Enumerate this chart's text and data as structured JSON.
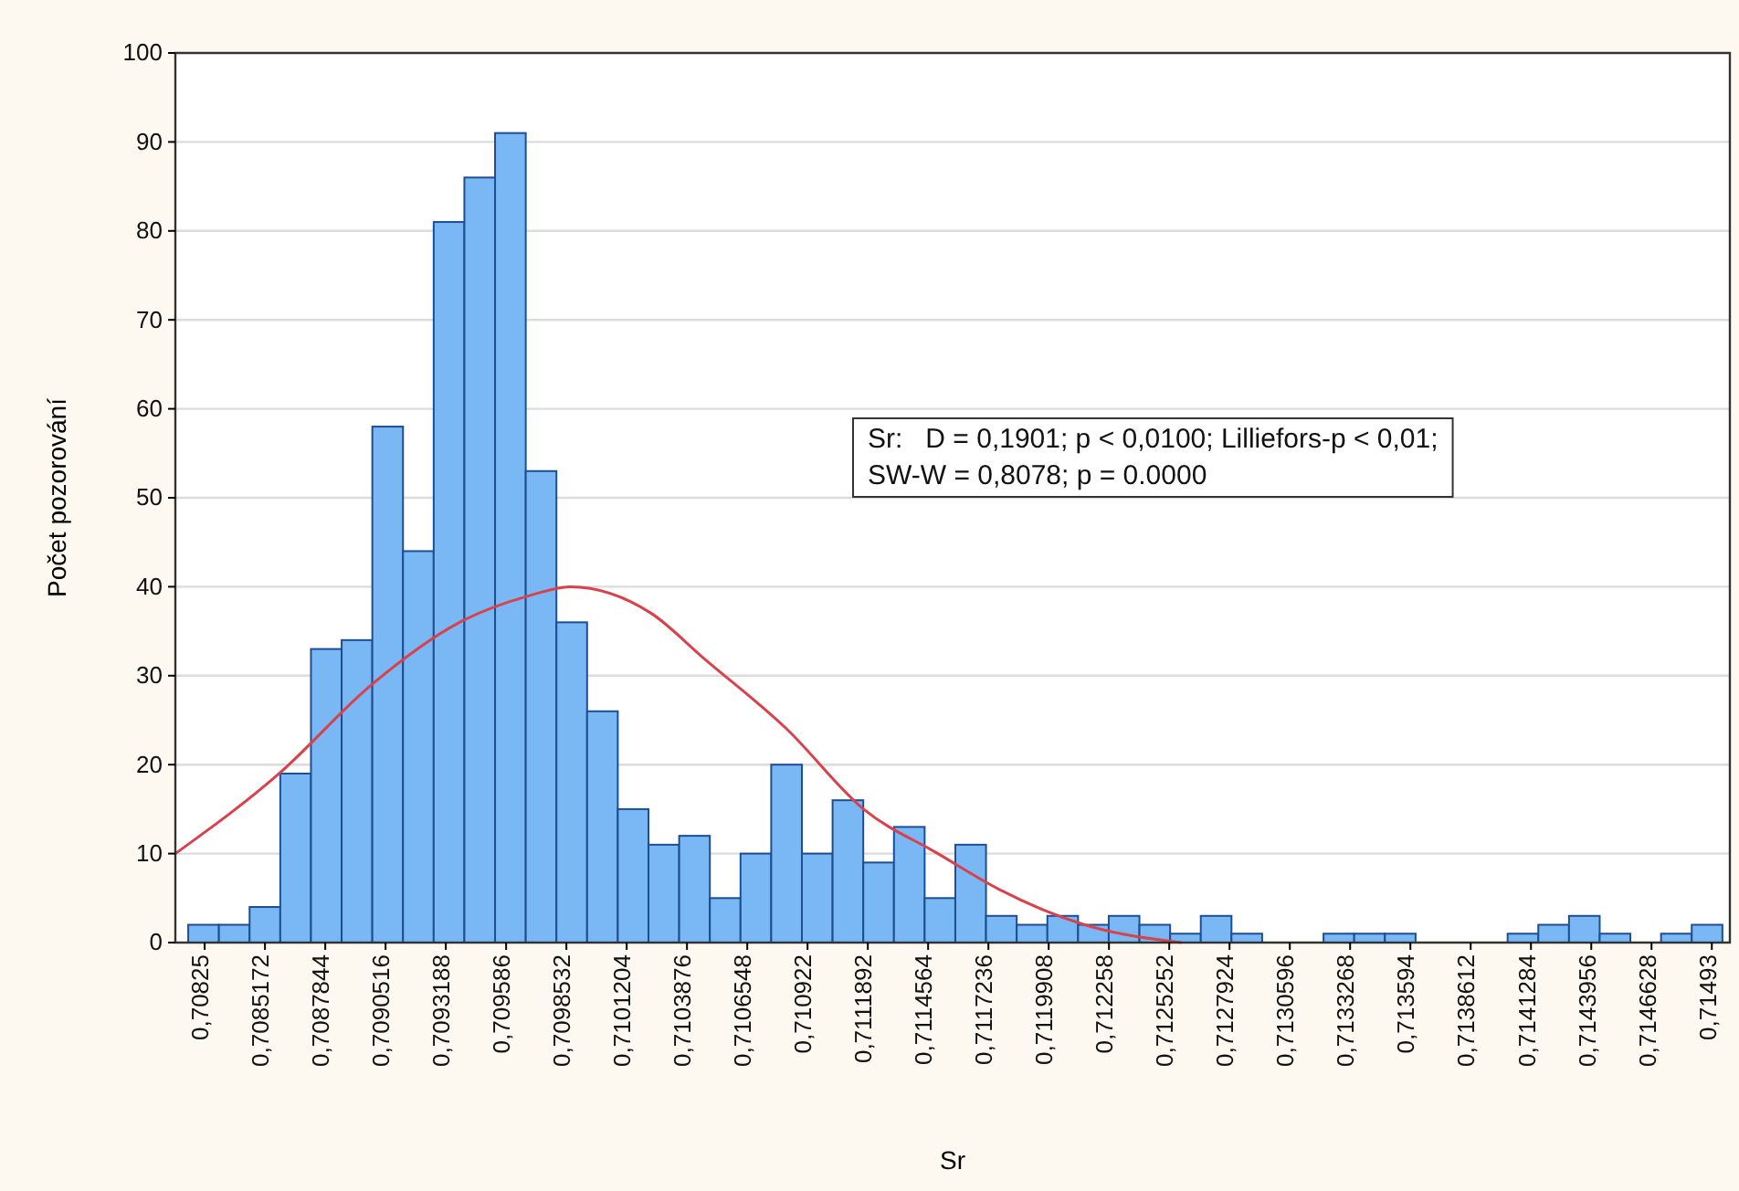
{
  "chart_data": {
    "type": "histogram",
    "xlabel": "Sr",
    "ylabel": "Počet pozorování",
    "bins": [
      0.708177,
      0.708313,
      0.708449,
      0.708585,
      0.708721,
      0.708857,
      0.708993,
      0.709129,
      0.709265,
      0.709401,
      0.709537,
      0.709673,
      0.709809,
      0.709945,
      0.710081,
      0.710217,
      0.710353,
      0.710489,
      0.710625,
      0.710761,
      0.710897,
      0.711033,
      0.711169,
      0.711305,
      0.711441,
      0.711577,
      0.711713,
      0.711849,
      0.711985,
      0.712121,
      0.712257,
      0.712393,
      0.712529,
      0.712665,
      0.712801,
      0.712937,
      0.713073,
      0.713209,
      0.713345,
      0.713481,
      0.713617,
      0.713753,
      0.713889,
      0.714025,
      0.714161,
      0.714297,
      0.714433,
      0.714569,
      0.714705,
      0.714841,
      0.714977
    ],
    "values": [
      2,
      2,
      4,
      19,
      33,
      34,
      58,
      44,
      81,
      86,
      91,
      53,
      36,
      26,
      15,
      11,
      12,
      5,
      10,
      20,
      10,
      16,
      9,
      13,
      5,
      11,
      3,
      2,
      3,
      2,
      3,
      2,
      1,
      3,
      1,
      0,
      0,
      1,
      1,
      1,
      0,
      0,
      0,
      1,
      2,
      3,
      1,
      0,
      1,
      2
    ],
    "color": "#7ab8f5",
    "series": [
      {
        "type": "line",
        "color": "#d8424c",
        "x": [
          0.70812,
          0.70858,
          0.70899,
          0.70938,
          0.70969,
          0.70987,
          0.71023,
          0.71046,
          0.71083,
          0.71117,
          0.7115,
          0.71177,
          0.71215,
          0.71258
        ],
        "values": [
          10,
          19,
          29,
          36,
          39,
          40,
          37,
          32,
          24,
          15,
          10,
          6,
          2,
          0
        ]
      }
    ],
    "xlim": [
      0.70812,
      0.71501
    ],
    "xticks": [
      {
        "value": 0.70825,
        "label": "0,70825"
      },
      {
        "value": 0.7085172,
        "label": "0,7085172"
      },
      {
        "value": 0.7087844,
        "label": "0,7087844"
      },
      {
        "value": 0.7090516,
        "label": "0,7090516"
      },
      {
        "value": 0.7093188,
        "label": "0,7093188"
      },
      {
        "value": 0.709586,
        "label": "0,709586"
      },
      {
        "value": 0.7098532,
        "label": "0,7098532"
      },
      {
        "value": 0.7101204,
        "label": "0,7101204"
      },
      {
        "value": 0.7103876,
        "label": "0,7103876"
      },
      {
        "value": 0.7106548,
        "label": "0,7106548"
      },
      {
        "value": 0.710922,
        "label": "0,710922"
      },
      {
        "value": 0.7111892,
        "label": "0,7111892"
      },
      {
        "value": 0.7114564,
        "label": "0,7114564"
      },
      {
        "value": 0.7117236,
        "label": "0,7117236"
      },
      {
        "value": 0.7119908,
        "label": "0,7119908"
      },
      {
        "value": 0.712258,
        "label": "0,712258"
      },
      {
        "value": 0.7125252,
        "label": "0,7125252"
      },
      {
        "value": 0.7127924,
        "label": "0,7127924"
      },
      {
        "value": 0.7130596,
        "label": "0,7130596"
      },
      {
        "value": 0.7133268,
        "label": "0,7133268"
      },
      {
        "value": 0.713594,
        "label": "0,713594"
      },
      {
        "value": 0.7138612,
        "label": "0,7138612"
      },
      {
        "value": 0.7141284,
        "label": "0,7141284"
      },
      {
        "value": 0.7143956,
        "label": "0,7143956"
      },
      {
        "value": 0.7146628,
        "label": "0,7146628"
      },
      {
        "value": 0.71493,
        "label": "0,71493"
      }
    ],
    "ylim": [
      0,
      100
    ],
    "yticks": [
      0,
      10,
      20,
      30,
      40,
      50,
      60,
      70,
      80,
      90,
      100
    ],
    "grid": "y",
    "annotations": [
      "Sr:   D = 0,1901; p < 0,0100; Lilliefors-p < 0,01;",
      "SW-W = 0,8078; p = 0.0000"
    ]
  }
}
